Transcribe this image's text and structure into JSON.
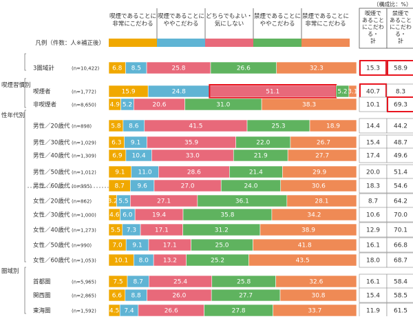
{
  "chart_data": {
    "type": "bar",
    "unit_note": "（構成比：%）",
    "legend_caption": "凡例（件数：人※補正後）",
    "columns": [
      {
        "label": "喫煙であることに\n非常にこだわる",
        "color": "#f0a800"
      },
      {
        "label": "喫煙であることに\nややこだわる",
        "color": "#5fb4d4"
      },
      {
        "label": "どちらでもよい・\n気にしない",
        "color": "#e8697a"
      },
      {
        "label": "禁煙であることに\nややこだわる",
        "color": "#5fb35f"
      },
      {
        "label": "禁煙であることに\n非常にこだわる",
        "color": "#ef8a55"
      }
    ],
    "total_headers": [
      "喫煙で\nあること\nにこだわ\nる・\n計",
      "禁煙で\nあること\nにこだわ\nる・\n計"
    ],
    "groups": [
      {
        "label": "",
        "rows": [
          {
            "name": "3圏域計",
            "n": "(n=10,422)",
            "values": [
              6.8,
              8.5,
              25.8,
              26.6,
              32.3
            ],
            "totals": [
              "15.3",
              "58.9"
            ]
          }
        ]
      },
      {
        "label": "喫煙習慣別",
        "rows": [
          {
            "name": "喫煙者",
            "n": "(n=1,772)",
            "values": [
              15.9,
              24.8,
              51.1,
              5.2,
              3.1
            ],
            "totals": [
              "40.7",
              "8.3"
            ]
          },
          {
            "name": "非喫煙者",
            "n": "(n=8,650)",
            "values": [
              4.9,
              5.2,
              20.6,
              31.0,
              38.3
            ],
            "totals": [
              "10.1",
              "69.3"
            ]
          }
        ]
      },
      {
        "label": "性年代別",
        "rows": [
          {
            "name": "男性／20歳代",
            "n": "(n=898)",
            "values": [
              5.8,
              8.6,
              41.5,
              25.3,
              18.9
            ],
            "totals": [
              "14.4",
              "44.2"
            ]
          },
          {
            "name": "男性／30歳代",
            "n": "(n=1,029)",
            "values": [
              6.3,
              9.1,
              35.9,
              22.0,
              26.7
            ],
            "totals": [
              "15.4",
              "48.7"
            ]
          },
          {
            "name": "男性／40歳代",
            "n": "(n=1,309)",
            "values": [
              6.9,
              10.4,
              33.0,
              21.9,
              27.7
            ],
            "totals": [
              "17.4",
              "49.6"
            ]
          },
          {
            "name": "男性／50歳代",
            "n": "(n=1,012)",
            "values": [
              9.1,
              11.0,
              28.6,
              21.4,
              29.9
            ],
            "totals": [
              "20.0",
              "51.4"
            ]
          },
          {
            "name": "男性／60歳代",
            "n": "(n=995)",
            "values": [
              8.7,
              9.6,
              27.0,
              24.0,
              30.6
            ],
            "totals": [
              "18.3",
              "54.6"
            ]
          },
          {
            "name": "女性／20歳代",
            "n": "(n=862)",
            "values": [
              3.2,
              5.5,
              27.1,
              36.1,
              28.1
            ],
            "totals": [
              "8.7",
              "64.2"
            ]
          },
          {
            "name": "女性／30歳代",
            "n": "(n=1,000)",
            "values": [
              4.6,
              6.0,
              19.4,
              35.8,
              34.2
            ],
            "totals": [
              "10.6",
              "70.0"
            ]
          },
          {
            "name": "女性／40歳代",
            "n": "(n=1,273)",
            "values": [
              5.5,
              7.3,
              17.1,
              31.2,
              38.9
            ],
            "totals": [
              "12.9",
              "70.1"
            ]
          },
          {
            "name": "女性／50歳代",
            "n": "(n=990)",
            "values": [
              7.0,
              9.1,
              17.1,
              25.0,
              41.8
            ],
            "totals": [
              "16.1",
              "66.8"
            ]
          },
          {
            "name": "女性／60歳代",
            "n": "(n=1,053)",
            "values": [
              10.1,
              8.0,
              13.2,
              25.2,
              43.5
            ],
            "totals": [
              "18.0",
              "68.7"
            ]
          }
        ]
      },
      {
        "label": "圏域別",
        "rows": [
          {
            "name": "首都圏",
            "n": "(n=5,965)",
            "values": [
              7.5,
              8.7,
              25.4,
              25.8,
              32.6
            ],
            "totals": [
              "16.1",
              "58.4"
            ]
          },
          {
            "name": "関西圏",
            "n": "(n=2,865)",
            "values": [
              6.6,
              8.8,
              26.0,
              27.7,
              30.8
            ],
            "totals": [
              "15.4",
              "58.5"
            ]
          },
          {
            "name": "東海圏",
            "n": "(n=1,592)",
            "values": [
              4.5,
              7.4,
              26.6,
              27.8,
              33.7
            ],
            "totals": [
              "11.9",
              "61.5"
            ]
          }
        ]
      }
    ],
    "highlighted_segments": [
      {
        "group": 1,
        "row": 0,
        "segment": 2
      }
    ],
    "highlighted_totals": [
      {
        "group": 0,
        "row": 0,
        "col": 0
      },
      {
        "group": 0,
        "row": 0,
        "col": 1
      },
      {
        "group": 1,
        "row": 0,
        "col": 0
      },
      {
        "group": 1,
        "row": 1,
        "col": 1
      }
    ],
    "highlight_color": "#e8141e"
  }
}
